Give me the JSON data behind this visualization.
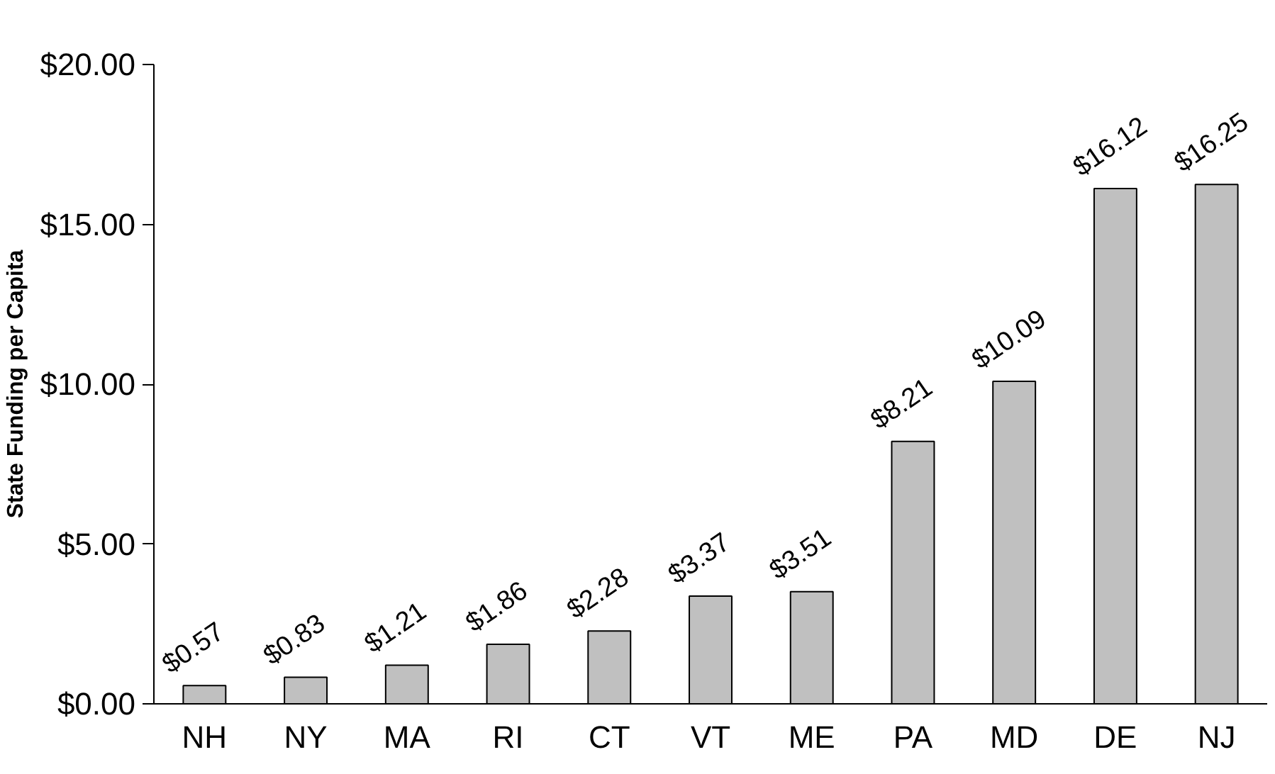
{
  "chart_data": {
    "type": "bar",
    "ylabel": "State Funding per Capita",
    "categories": [
      "NH",
      "NY",
      "MA",
      "RI",
      "CT",
      "VT",
      "ME",
      "PA",
      "MD",
      "DE",
      "NJ"
    ],
    "values": [
      0.57,
      0.83,
      1.21,
      1.86,
      2.28,
      3.37,
      3.51,
      8.21,
      10.09,
      16.12,
      16.25
    ],
    "value_labels": [
      "$0.57",
      "$0.83",
      "$1.21",
      "$1.86",
      "$2.28",
      "$3.37",
      "$3.51",
      "$8.21",
      "$10.09",
      "$16.12",
      "$16.25"
    ],
    "color": "#c0c0c0",
    "ylim": [
      0,
      20
    ],
    "yticks": [
      {
        "value": 0,
        "label": "$0.00"
      },
      {
        "value": 5,
        "label": "$5.00"
      },
      {
        "value": 10,
        "label": "$10.00"
      },
      {
        "value": 15,
        "label": "$15.00"
      },
      {
        "value": 20,
        "label": "$20.00"
      }
    ],
    "grid": false
  }
}
